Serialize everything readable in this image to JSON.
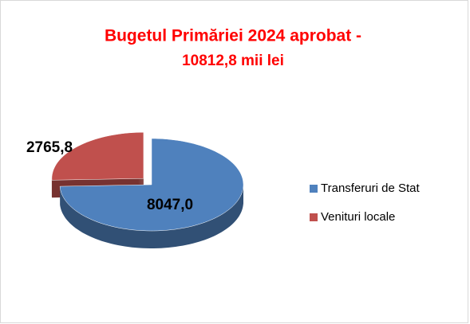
{
  "chart_data": {
    "type": "pie",
    "title": [
      "Bugetul Primăriei 2024 aprobat -",
      "10812,8 mii lei"
    ],
    "categories": [
      "Transferuri de Stat",
      "Venituri locale"
    ],
    "values": [
      8047.0,
      2765.8
    ],
    "value_labels": [
      "8047,0",
      "2765,8"
    ],
    "colors": [
      "#4f81bd",
      "#c0504d"
    ],
    "legend": "right"
  }
}
